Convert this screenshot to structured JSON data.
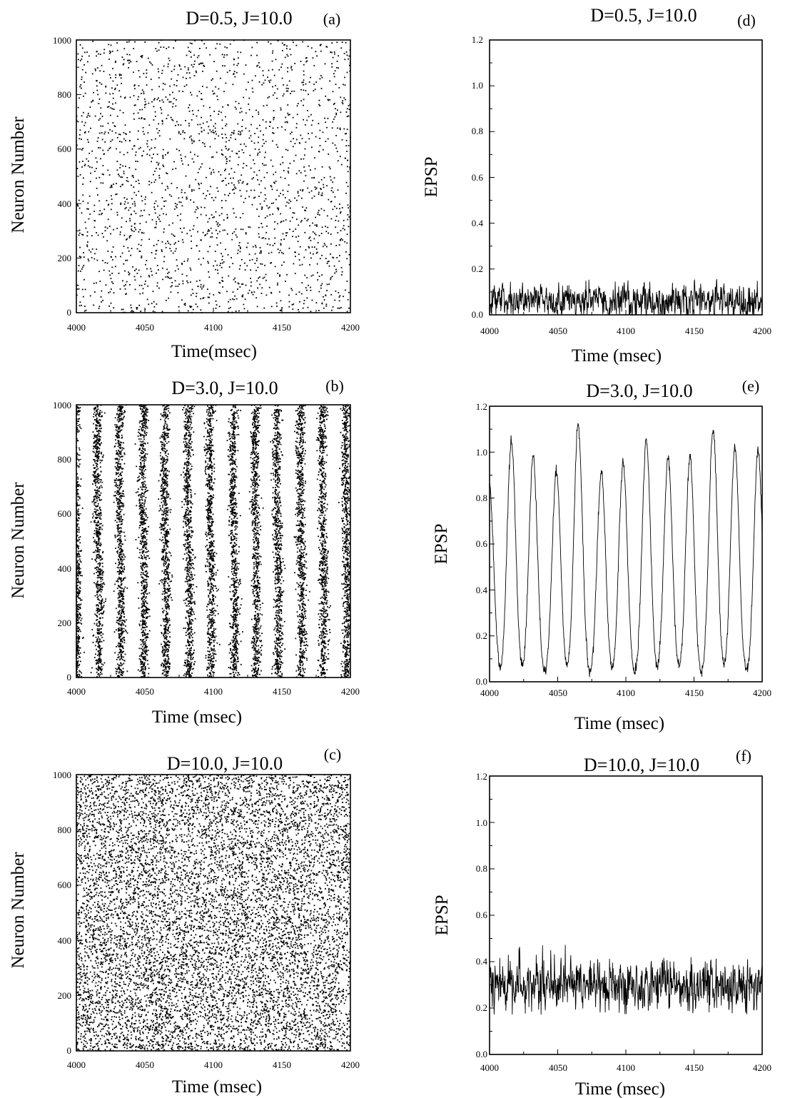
{
  "chart_data": [
    {
      "id": "a",
      "type": "scatter",
      "title": "D=0.5, J=10.0",
      "panel_label": "(a)",
      "xlabel": "Time(msec)",
      "ylabel": "Neuron Number",
      "xlim": [
        4000,
        4200
      ],
      "ylim": [
        0,
        1000
      ],
      "xticks": [
        4000,
        4050,
        4100,
        4150,
        4200
      ],
      "yticks": [
        0,
        200,
        400,
        600,
        800,
        1000
      ],
      "pattern": "asynchronous sparse spiking",
      "approx_spike_count": 2200,
      "grid": false
    },
    {
      "id": "b",
      "type": "scatter",
      "title": "D=3.0, J=10.0",
      "panel_label": "(b)",
      "xlabel": "Time (msec)",
      "ylabel": "Neuron Number",
      "xlim": [
        4000,
        4200
      ],
      "ylim": [
        0,
        1000
      ],
      "xticks": [
        4000,
        4050,
        4100,
        4150,
        4200
      ],
      "yticks": [
        0,
        200,
        400,
        600,
        800,
        1000
      ],
      "pattern": "synchronized vertical spike bands",
      "band_times": [
        4000,
        4016,
        4032,
        4049,
        4065,
        4082,
        4098,
        4115,
        4131,
        4147,
        4164,
        4180,
        4197
      ],
      "approx_spikes_per_band": 800,
      "grid": false
    },
    {
      "id": "c",
      "type": "scatter",
      "title": "D=10.0, J=10.0",
      "panel_label": "(c)",
      "xlabel": "Time (msec)",
      "ylabel": "Neuron Number",
      "xlim": [
        4000,
        4200
      ],
      "ylim": [
        0,
        1000
      ],
      "xticks": [
        4000,
        4050,
        4100,
        4150,
        4200
      ],
      "yticks": [
        0,
        200,
        400,
        600,
        800,
        1000
      ],
      "pattern": "asynchronous dense spiking",
      "approx_spike_count": 9500,
      "grid": false
    },
    {
      "id": "d",
      "type": "line",
      "title": "D=0.5, J=10.0",
      "panel_label": "(d)",
      "xlabel": "Time (msec)",
      "ylabel": "EPSP",
      "xlim": [
        4000,
        4200
      ],
      "ylim": [
        0,
        1.2
      ],
      "xticks": [
        4000,
        4050,
        4100,
        4150,
        4200
      ],
      "yticks": [
        0.0,
        0.2,
        0.4,
        0.6,
        0.8,
        1.0,
        1.2
      ],
      "ytick_labels": [
        "0.0",
        "0.2",
        "0.4",
        "0.6",
        "0.8",
        "1.0",
        "1.2"
      ],
      "mean": 0.06,
      "fluctuation": 0.035,
      "max": 0.16,
      "grid": false
    },
    {
      "id": "e",
      "type": "line",
      "title": "D=3.0, J=10.0",
      "panel_label": "(e)",
      "xlabel": "Time (msec)",
      "ylabel": "EPSP",
      "xlim": [
        4000,
        4200
      ],
      "ylim": [
        0,
        1.2
      ],
      "xticks": [
        4000,
        4050,
        4100,
        4150,
        4200
      ],
      "yticks": [
        0.0,
        0.2,
        0.4,
        0.6,
        0.8,
        1.0,
        1.2
      ],
      "ytick_labels": [
        "0.0",
        "0.2",
        "0.4",
        "0.6",
        "0.8",
        "1.0",
        "1.2"
      ],
      "peaks": [
        {
          "x": 4000,
          "y": 0.85
        },
        {
          "x": 4016,
          "y": 1.05
        },
        {
          "x": 4032,
          "y": 0.98
        },
        {
          "x": 4049,
          "y": 0.92
        },
        {
          "x": 4065,
          "y": 1.12
        },
        {
          "x": 4082,
          "y": 0.91
        },
        {
          "x": 4098,
          "y": 0.96
        },
        {
          "x": 4115,
          "y": 1.05
        },
        {
          "x": 4131,
          "y": 0.98
        },
        {
          "x": 4147,
          "y": 0.98
        },
        {
          "x": 4164,
          "y": 1.1
        },
        {
          "x": 4180,
          "y": 1.02
        },
        {
          "x": 4197,
          "y": 1.01
        }
      ],
      "trough": 0.0,
      "grid": false
    },
    {
      "id": "f",
      "type": "line",
      "title": "D=10.0, J=10.0",
      "panel_label": "(f)",
      "xlabel": "Time (msec)",
      "ylabel": "EPSP",
      "xlim": [
        4000,
        4200
      ],
      "ylim": [
        0,
        1.2
      ],
      "xticks": [
        4000,
        4050,
        4100,
        4150,
        4200
      ],
      "yticks": [
        0.0,
        0.2,
        0.4,
        0.6,
        0.8,
        1.0,
        1.2
      ],
      "ytick_labels": [
        "0.0",
        "0.2",
        "0.4",
        "0.6",
        "0.8",
        "1.0",
        "1.2"
      ],
      "mean": 0.3,
      "fluctuation": 0.05,
      "min": 0.17,
      "max": 0.49,
      "grid": false
    }
  ]
}
